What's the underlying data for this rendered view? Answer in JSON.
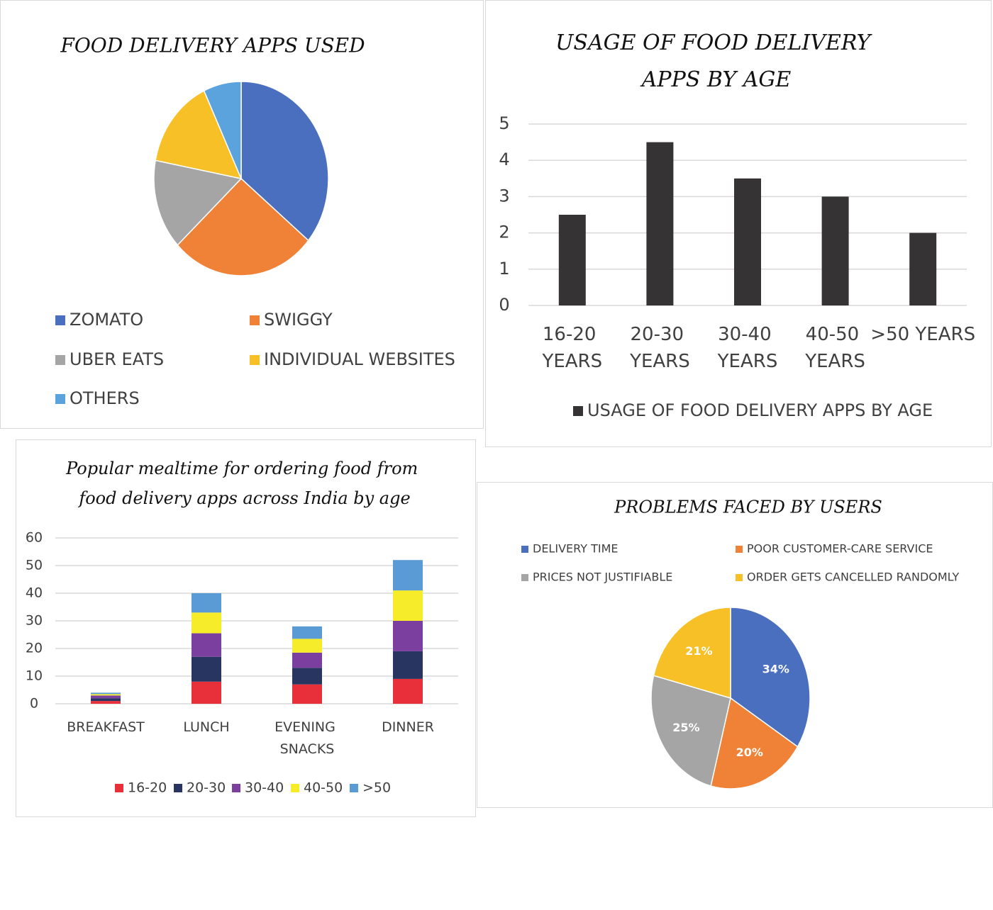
{
  "chart_data": [
    {
      "type": "pie",
      "title": "FOOD DELIVERY APPS USED",
      "categories": [
        "ZOMATO",
        "SWIGGY",
        "UBER EATS",
        "INDIVIDUAL WEBSITES",
        "OTHERS"
      ],
      "values": [
        36,
        27,
        15,
        15,
        7
      ],
      "colors": [
        "#4a6fbe",
        "#ef8236",
        "#a5a5a5",
        "#f6c026",
        "#5ba3dc"
      ]
    },
    {
      "type": "bar",
      "title": "USAGE OF FOOD DELIVERY APPS BY AGE",
      "categories": [
        "16-20 YEARS",
        "20-30 YEARS",
        "30-40 YEARS",
        "40-50 YEARS",
        ">50 YEARS"
      ],
      "series": [
        {
          "name": "USAGE OF FOOD DELIVERY APPS BY AGE",
          "color": "#353334",
          "values": [
            2.5,
            4.5,
            3.5,
            3,
            2
          ]
        }
      ],
      "ylim": [
        0,
        5
      ],
      "yticks": [
        0,
        1,
        2,
        3,
        4,
        5
      ],
      "grid": true
    },
    {
      "type": "stacked_bar",
      "title": "Popular mealtime for ordering food from food delivery apps across India by age",
      "categories": [
        "BREAKFAST",
        "LUNCH",
        "EVENING SNACKS",
        "DINNER"
      ],
      "series": [
        {
          "name": "16-20",
          "color": "#e8303a",
          "values": [
            1,
            8,
            7,
            9
          ]
        },
        {
          "name": "20-30",
          "color": "#283560",
          "values": [
            1,
            9,
            6,
            10
          ]
        },
        {
          "name": "30-40",
          "color": "#7b3fa0",
          "values": [
            1,
            8.5,
            5.5,
            11
          ]
        },
        {
          "name": "40-50",
          "color": "#f6ec2a",
          "values": [
            0.5,
            7.5,
            5,
            11
          ]
        },
        {
          "name": ">50",
          "color": "#5b9bd5",
          "values": [
            0.5,
            7,
            4.5,
            11
          ]
        }
      ],
      "ylim": [
        0,
        60
      ],
      "yticks": [
        0,
        10,
        20,
        30,
        40,
        50,
        60
      ],
      "grid": true
    },
    {
      "type": "pie",
      "title": "PROBLEMS FACED BY USERS",
      "categories": [
        "DELIVERY TIME",
        "POOR CUSTOMER-CARE SERVICE",
        "PRICES NOT JUSTIFIABLE",
        "ORDER GETS CANCELLED RANDOMLY"
      ],
      "values": [
        34,
        20,
        25,
        21
      ],
      "value_labels": [
        "34%",
        "20%",
        "25%",
        "21%"
      ],
      "colors": [
        "#4a6fbe",
        "#ef8236",
        "#a5a5a5",
        "#f6c026"
      ]
    }
  ]
}
